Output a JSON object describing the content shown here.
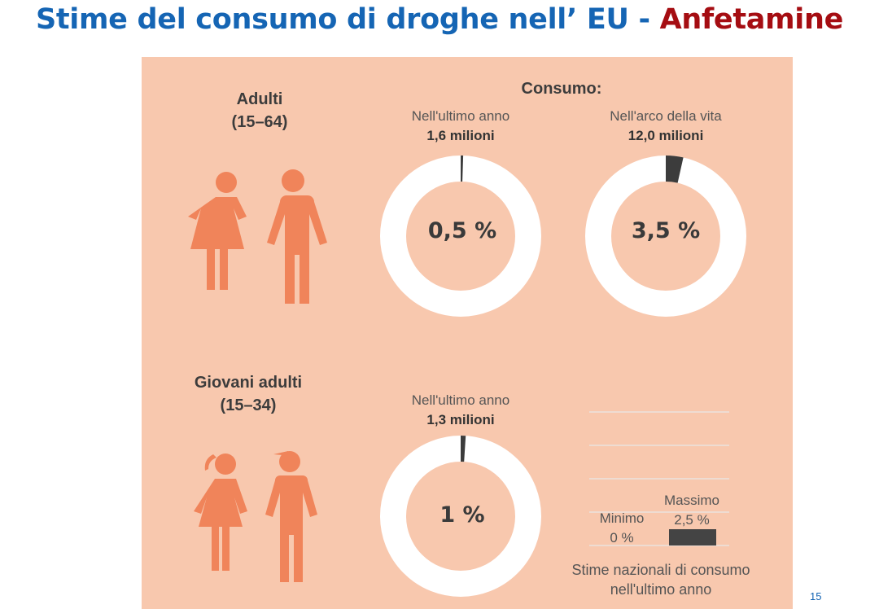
{
  "title": {
    "main": "Stime del consumo di droghe nell’ EU - ",
    "accent": "Anfetamine"
  },
  "colors": {
    "accent": "#a50d12",
    "title": "#1565b4",
    "panel": "#f8c8ae",
    "figure": "#f0845a",
    "wedge": "#3c3c3c"
  },
  "consumo_label": "Consumo:",
  "groups": {
    "adults": {
      "label": "Adulti",
      "age": "(15–64)"
    },
    "young": {
      "label": "Giovani adulti",
      "age": "(15–34)"
    }
  },
  "chart_data": [
    {
      "type": "pie",
      "title": "Nell'ultimo anno",
      "subtitle": "1,6 milioni",
      "value": 0.5,
      "label": "0,5 %"
    },
    {
      "type": "pie",
      "title": "Nell'arco della vita",
      "subtitle": "12,0 milioni",
      "value": 3.5,
      "label": "3,5 %"
    },
    {
      "type": "pie",
      "title": "Nell'ultimo anno",
      "subtitle": "1,3 milioni",
      "value": 1,
      "label": "1 %"
    },
    {
      "type": "bar",
      "caption": [
        "Stime nazionali di consumo",
        "nell'ultimo anno"
      ],
      "min": {
        "label": "Minimo",
        "value_label": "0 %",
        "value": 0
      },
      "max": {
        "label": "Massimo",
        "value_label": "2,5 %",
        "value": 2.5
      }
    }
  ],
  "page_number": "15"
}
